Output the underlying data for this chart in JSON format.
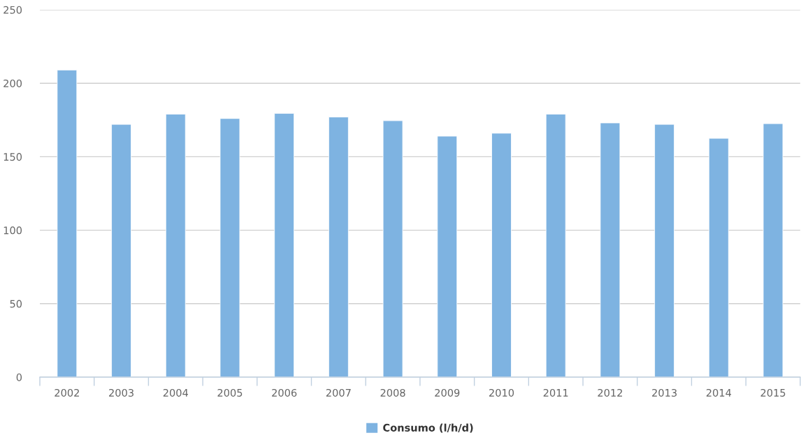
{
  "chart_data": {
    "type": "bar",
    "categories": [
      "2002",
      "2003",
      "2004",
      "2005",
      "2006",
      "2007",
      "2008",
      "2009",
      "2010",
      "2011",
      "2012",
      "2013",
      "2014",
      "2015"
    ],
    "series": [
      {
        "name": "Consumo (l/h/d)",
        "color": "#7eb3e1",
        "values": [
          209,
          172,
          179,
          176,
          179.5,
          177,
          174.5,
          164,
          166,
          179,
          173,
          172,
          162.5,
          172.5
        ]
      }
    ],
    "ylim": [
      0,
      250
    ],
    "yticks": [
      0,
      50,
      100,
      150,
      200,
      250
    ],
    "grid": "y",
    "legend": "bottom"
  }
}
